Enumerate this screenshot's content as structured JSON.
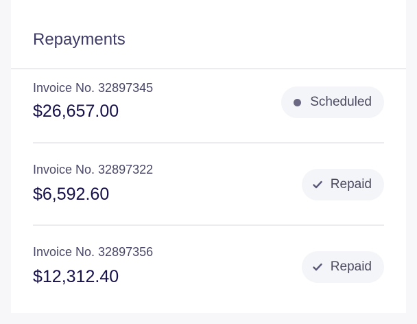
{
  "title": "Repayments",
  "rows": [
    {
      "invoice": "Invoice No. 32897345",
      "amount": "$26,657.00",
      "status": "Scheduled",
      "status_icon": "dot-icon"
    },
    {
      "invoice": "Invoice No. 32897322",
      "amount": "$6,592.60",
      "status": "Repaid",
      "status_icon": "check-icon"
    },
    {
      "invoice": "Invoice No. 32897356",
      "amount": "$12,312.40",
      "status": "Repaid",
      "status_icon": "check-icon"
    }
  ]
}
